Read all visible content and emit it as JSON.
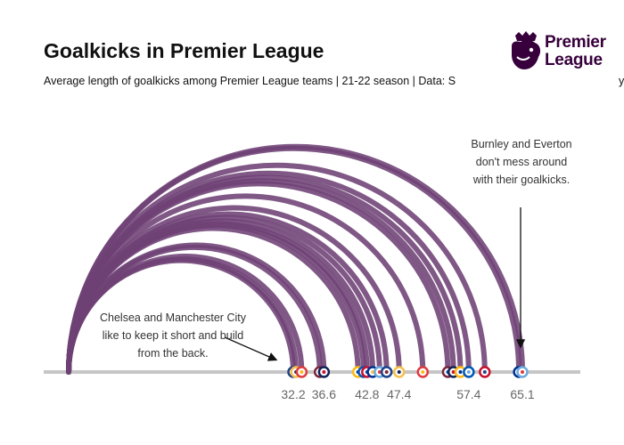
{
  "title": "Goalkicks in Premier League",
  "subtitle": "Average length of goalkicks among Premier League teams | 21-22 season | Data: S",
  "subtitle_tail": "y",
  "logo": {
    "line1": "Premier",
    "line2": "League",
    "icon": "lion-crest-icon",
    "color": "#37003c"
  },
  "annotations": {
    "right": "Burnley and Everton\ndon't mess around\nwith their goalkicks.",
    "left": "Chelsea and Manchester City\nlike to keep it short and build\nfrom the back."
  },
  "chart_data": {
    "type": "arc",
    "xlim": [
      0,
      72
    ],
    "tick_labels": [
      "32.2",
      "36.6",
      "42.8",
      "47.4",
      "57.4",
      "65.1"
    ],
    "ticks": [
      32.2,
      36.6,
      42.8,
      47.4,
      57.4,
      65.1
    ],
    "values": [
      32.2,
      32.6,
      33.4,
      36.0,
      36.6,
      41.5,
      42.3,
      42.8,
      43.6,
      44.6,
      45.6,
      47.4,
      50.8,
      54.4,
      55.2,
      56.2,
      57.4,
      59.7,
      64.6,
      65.1
    ],
    "arc_color": "#6e4175",
    "baseline_color": "#c6c6c6",
    "badge_icon": "team-crest-icon"
  }
}
